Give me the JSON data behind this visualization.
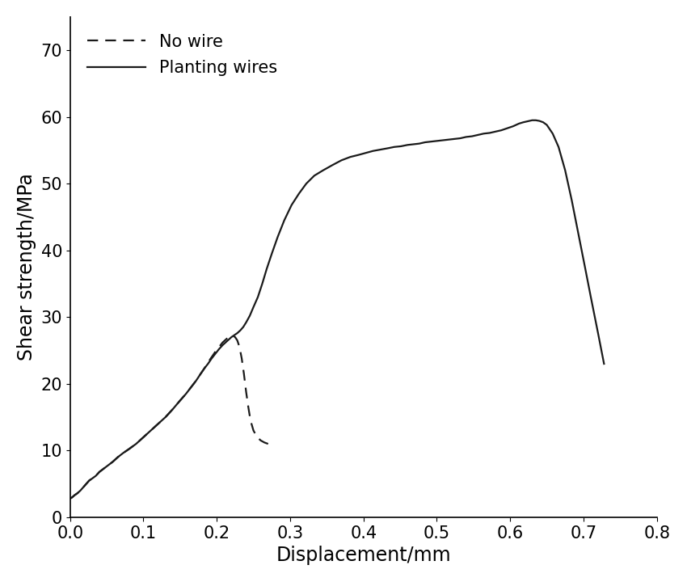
{
  "title": "",
  "xlabel": "Displacement/mm",
  "ylabel": "Shear strength/MPa",
  "xlim": [
    0.0,
    0.8
  ],
  "ylim": [
    0,
    75
  ],
  "xticks": [
    0.0,
    0.1,
    0.2,
    0.3,
    0.4,
    0.5,
    0.6,
    0.7,
    0.8
  ],
  "yticks": [
    0,
    10,
    20,
    30,
    40,
    50,
    60,
    70
  ],
  "legend_labels": [
    "No wire",
    "Planting wires"
  ],
  "no_wire_x": [
    0.0,
    0.003,
    0.006,
    0.01,
    0.014,
    0.018,
    0.022,
    0.026,
    0.03,
    0.035,
    0.04,
    0.046,
    0.052,
    0.058,
    0.065,
    0.072,
    0.08,
    0.09,
    0.1,
    0.11,
    0.12,
    0.13,
    0.14,
    0.15,
    0.158,
    0.165,
    0.172,
    0.178,
    0.183,
    0.188,
    0.193,
    0.198,
    0.203,
    0.208,
    0.212,
    0.216,
    0.219,
    0.222,
    0.225,
    0.228,
    0.231,
    0.234,
    0.237,
    0.24,
    0.243,
    0.246,
    0.25,
    0.255,
    0.26,
    0.265,
    0.27
  ],
  "no_wire_y": [
    2.8,
    3.0,
    3.3,
    3.6,
    4.0,
    4.5,
    5.0,
    5.5,
    5.8,
    6.2,
    6.8,
    7.3,
    7.8,
    8.3,
    9.0,
    9.6,
    10.2,
    11.0,
    12.0,
    13.0,
    14.0,
    15.0,
    16.2,
    17.5,
    18.5,
    19.5,
    20.5,
    21.5,
    22.3,
    23.2,
    24.0,
    24.8,
    25.5,
    26.2,
    26.6,
    27.0,
    27.2,
    27.2,
    27.0,
    26.5,
    25.5,
    23.8,
    21.5,
    18.8,
    16.5,
    14.5,
    13.0,
    12.0,
    11.5,
    11.2,
    11.0
  ],
  "planting_x": [
    0.0,
    0.003,
    0.006,
    0.01,
    0.014,
    0.018,
    0.022,
    0.026,
    0.03,
    0.035,
    0.04,
    0.046,
    0.052,
    0.058,
    0.065,
    0.072,
    0.08,
    0.09,
    0.1,
    0.11,
    0.12,
    0.13,
    0.14,
    0.15,
    0.158,
    0.165,
    0.172,
    0.178,
    0.183,
    0.188,
    0.193,
    0.198,
    0.203,
    0.208,
    0.212,
    0.216,
    0.22,
    0.224,
    0.228,
    0.232,
    0.236,
    0.24,
    0.245,
    0.25,
    0.256,
    0.262,
    0.268,
    0.275,
    0.283,
    0.292,
    0.302,
    0.312,
    0.322,
    0.333,
    0.345,
    0.358,
    0.37,
    0.382,
    0.393,
    0.403,
    0.413,
    0.423,
    0.433,
    0.442,
    0.451,
    0.46,
    0.468,
    0.476,
    0.484,
    0.492,
    0.5,
    0.508,
    0.516,
    0.524,
    0.532,
    0.54,
    0.548,
    0.556,
    0.564,
    0.572,
    0.58,
    0.588,
    0.596,
    0.604,
    0.612,
    0.618,
    0.622,
    0.626,
    0.63,
    0.635,
    0.64,
    0.645,
    0.65,
    0.658,
    0.666,
    0.675,
    0.684,
    0.693,
    0.702,
    0.71,
    0.72,
    0.728
  ],
  "planting_y": [
    2.8,
    3.0,
    3.3,
    3.6,
    4.0,
    4.5,
    5.0,
    5.5,
    5.8,
    6.2,
    6.8,
    7.3,
    7.8,
    8.3,
    9.0,
    9.6,
    10.2,
    11.0,
    12.0,
    13.0,
    14.0,
    15.0,
    16.2,
    17.5,
    18.5,
    19.5,
    20.5,
    21.5,
    22.3,
    23.0,
    23.8,
    24.5,
    25.2,
    25.8,
    26.2,
    26.6,
    27.0,
    27.3,
    27.6,
    28.0,
    28.5,
    29.2,
    30.2,
    31.5,
    33.0,
    35.0,
    37.2,
    39.5,
    42.0,
    44.5,
    46.8,
    48.5,
    50.0,
    51.2,
    52.0,
    52.8,
    53.5,
    54.0,
    54.3,
    54.6,
    54.9,
    55.1,
    55.3,
    55.5,
    55.6,
    55.8,
    55.9,
    56.0,
    56.2,
    56.3,
    56.4,
    56.5,
    56.6,
    56.7,
    56.8,
    57.0,
    57.1,
    57.3,
    57.5,
    57.6,
    57.8,
    58.0,
    58.3,
    58.6,
    59.0,
    59.2,
    59.3,
    59.4,
    59.5,
    59.5,
    59.4,
    59.2,
    58.8,
    57.5,
    55.5,
    52.0,
    47.5,
    42.5,
    37.5,
    33.0,
    27.5,
    23.0
  ],
  "line_color": "#1a1a1a",
  "linewidth": 1.6,
  "background_color": "#ffffff",
  "font_size": 17,
  "tick_font_size": 15,
  "legend_font_size": 15,
  "figure_width": 8.5,
  "figure_height": 7.2
}
